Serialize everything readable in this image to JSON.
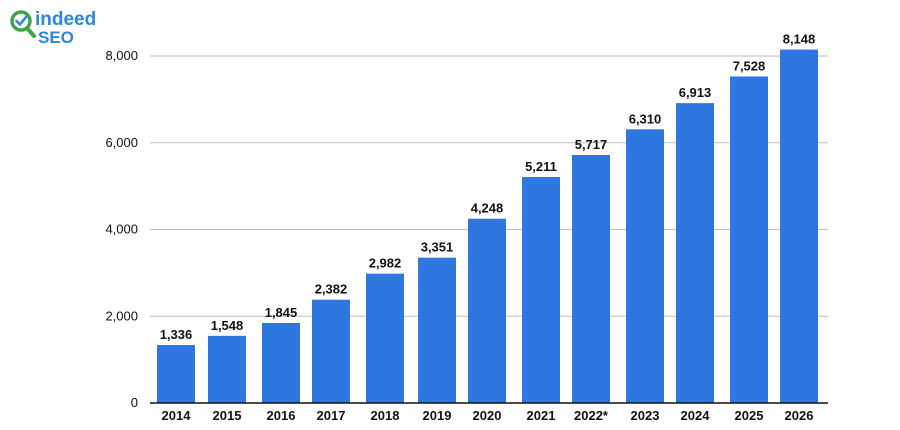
{
  "logo": {
    "line1": "indeed",
    "line2": "SEO"
  },
  "colors": {
    "bar": "#2e76e0",
    "grid": "#bdbdbd",
    "axis": "#111111",
    "logo_blue": "#2a86e0",
    "logo_green": "#3fa34d"
  },
  "chart_data": {
    "type": "bar",
    "title": "",
    "xlabel": "",
    "ylabel": "",
    "categories": [
      "2014",
      "2015",
      "2016",
      "2017",
      "2018",
      "2019",
      "2020",
      "2021",
      "2022*",
      "2023",
      "2024",
      "2025",
      "2026"
    ],
    "values": [
      1336,
      1548,
      1845,
      2382,
      2982,
      3351,
      4248,
      5211,
      5717,
      6310,
      6913,
      7528,
      8148
    ],
    "value_labels": [
      "1,336",
      "1,548",
      "1,845",
      "2,382",
      "2,982",
      "3,351",
      "4,248",
      "5,211",
      "5,717",
      "6,310",
      "6,913",
      "7,528",
      "8,148"
    ],
    "yticks": [
      0,
      2000,
      4000,
      6000,
      8000
    ],
    "ytick_labels": [
      "0",
      "2,000",
      "4,000",
      "6,000",
      "8,000"
    ],
    "ylim": [
      0,
      8000
    ],
    "grid": true
  }
}
